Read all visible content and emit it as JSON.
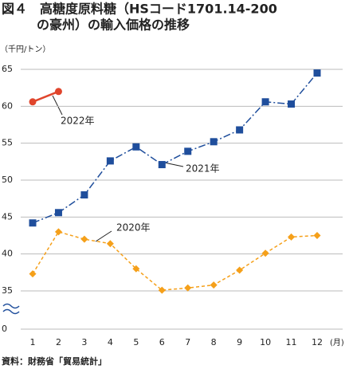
{
  "chart_data": {
    "type": "line",
    "title_line1": "図４　高糖度原料糖（HSコード1701.14-200",
    "title_line2": "の豪州）の輸入価格の推移",
    "y_unit": "（千円/トン）",
    "x_unit": "(月)",
    "source": "資料：財務省「貿易統計」",
    "categories": [
      "1",
      "2",
      "3",
      "4",
      "5",
      "6",
      "7",
      "8",
      "9",
      "10",
      "11",
      "12"
    ],
    "ylim": [
      35,
      65
    ],
    "yticks": [
      0,
      35,
      40,
      45,
      50,
      55,
      60,
      65
    ],
    "axis_break": true,
    "grid": true,
    "series": [
      {
        "name": "2020年",
        "color": "#f5a01a",
        "marker": "diamond",
        "dash": "4,3",
        "values": [
          37.3,
          43.0,
          42.0,
          41.4,
          38.0,
          35.1,
          35.4,
          35.8,
          37.8,
          40.1,
          42.3,
          42.5
        ]
      },
      {
        "name": "2021年",
        "color": "#1f4e9c",
        "marker": "square",
        "dash": "9,3,2,3",
        "values": [
          44.2,
          45.6,
          48.0,
          52.6,
          54.5,
          52.1,
          53.9,
          55.2,
          56.8,
          60.6,
          60.3,
          64.5
        ]
      },
      {
        "name": "2022年",
        "color": "#e0452c",
        "marker": "circle",
        "dash": "",
        "values": [
          60.6,
          62.0,
          null,
          null,
          null,
          null,
          null,
          null,
          null,
          null,
          null,
          null
        ]
      }
    ]
  }
}
